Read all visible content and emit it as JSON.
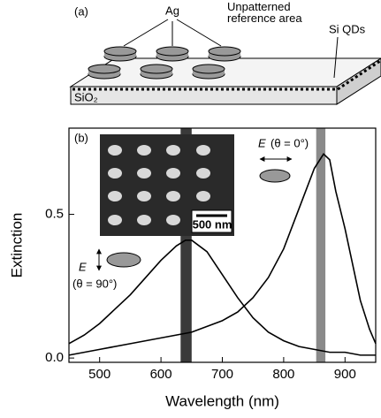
{
  "schematic": {
    "panel_label": "(a)",
    "particles": "Ag",
    "reference": "Unpatterned\nreference area",
    "dots": "Si QDs",
    "substrate": "SiO₂"
  },
  "chart_data": {
    "type": "line",
    "panel_label": "(b)",
    "x_label": "Wavelength (nm)",
    "y_label": "Extinction",
    "xlim": [
      450,
      950
    ],
    "xticks": [
      500,
      600,
      700,
      800,
      900
    ],
    "ylim": [
      -0.015,
      0.8
    ],
    "yticks": [
      {
        "value": 0,
        "label": "0.0"
      },
      0.5
    ],
    "annotations": [
      "E",
      "(θ = 0°)",
      "E",
      "(θ = 90°)",
      "500 nm"
    ],
    "bands": [
      {
        "x": [
          632,
          650
        ],
        "color": "#3a3a3a"
      },
      {
        "x": [
          853,
          868
        ],
        "color": "#8a8a8a"
      }
    ],
    "series": [
      {
        "color": "#000000",
        "x": [
          450,
          475,
          500,
          525,
          550,
          575,
          600,
          625,
          640,
          650,
          675,
          700,
          725,
          750,
          775,
          800,
          825,
          850,
          875,
          900,
          925,
          950
        ],
        "values": [
          0.05,
          0.08,
          0.12,
          0.17,
          0.22,
          0.28,
          0.34,
          0.39,
          0.41,
          0.41,
          0.37,
          0.29,
          0.21,
          0.14,
          0.09,
          0.06,
          0.04,
          0.03,
          0.02,
          0.02,
          0.01,
          0.01
        ]
      },
      {
        "color": "#000000",
        "x": [
          450,
          500,
          550,
          600,
          650,
          700,
          725,
          750,
          775,
          800,
          825,
          850,
          865,
          875,
          885,
          900,
          910,
          925,
          940,
          950
        ],
        "values": [
          0.01,
          0.03,
          0.05,
          0.07,
          0.09,
          0.13,
          0.16,
          0.21,
          0.28,
          0.38,
          0.52,
          0.66,
          0.71,
          0.69,
          0.58,
          0.45,
          0.35,
          0.2,
          0.1,
          0.05
        ]
      }
    ]
  }
}
